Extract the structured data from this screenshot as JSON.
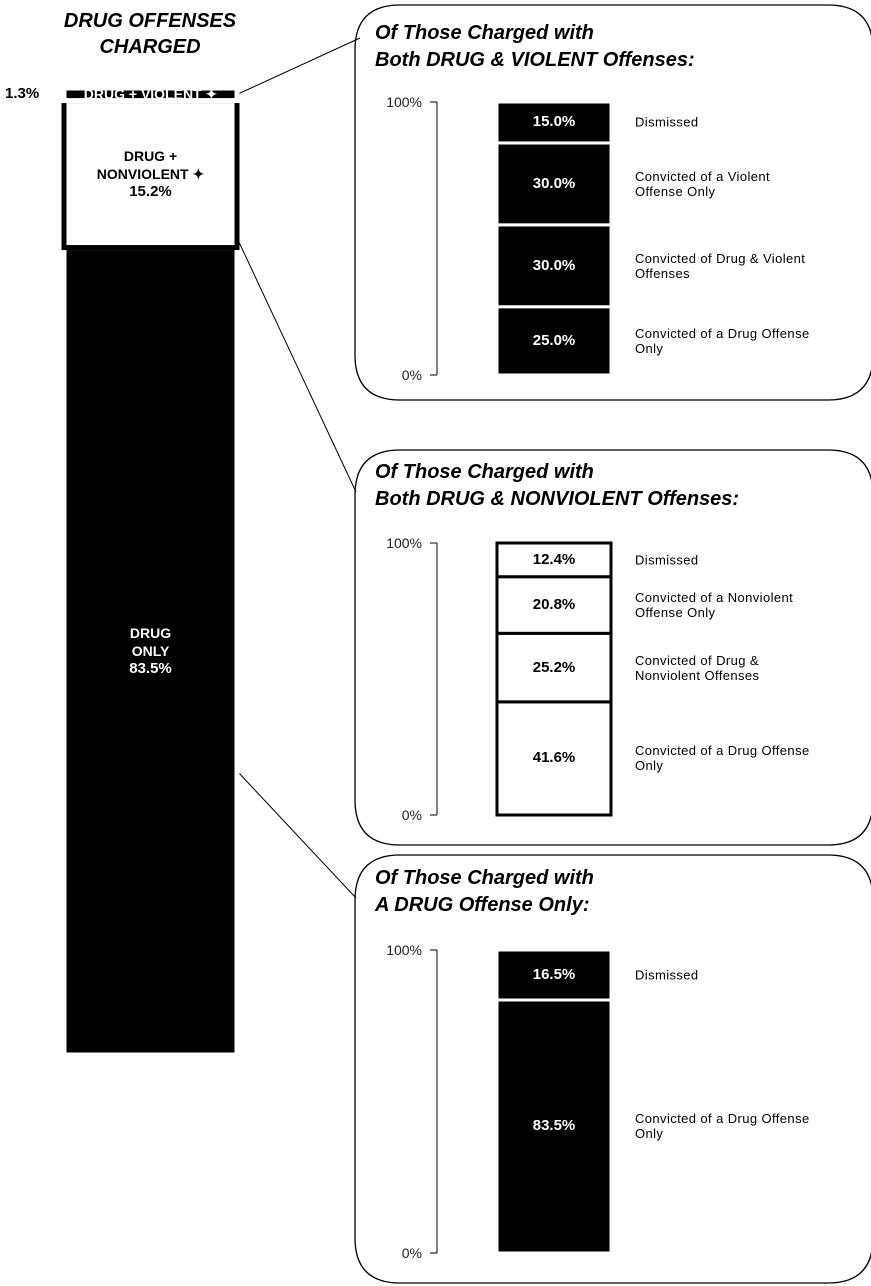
{
  "chart_data": [
    {
      "type": "stacked_bar",
      "title": "DRUG  OFFENSES\nCHARGED",
      "series": [
        {
          "name": "DRUG + VIOLENT ✦",
          "color": "#000000",
          "values": [
            1.3
          ],
          "value_labels": [
            "1.3%"
          ]
        },
        {
          "name": "DRUG +\nNONVIOLENT ✦",
          "color": "#ffffff",
          "values": [
            15.2
          ],
          "value_labels": [
            "15.2%"
          ]
        },
        {
          "name": "DRUG\nONLY",
          "color": "#000000",
          "values": [
            83.5
          ],
          "value_labels": [
            "83.5%"
          ]
        }
      ]
    },
    {
      "type": "stacked_bar",
      "title": "Of Those Charged with\nBoth DRUG & VIOLENT Offenses:",
      "ylim": [
        0,
        100
      ],
      "yticks": [
        {
          "value": 0,
          "label": "0%"
        },
        {
          "value": 100,
          "label": "100%"
        }
      ],
      "series": [
        {
          "name": "Dismissed",
          "color": "#000000",
          "values": [
            15.0
          ],
          "value_labels": [
            "15.0%"
          ]
        },
        {
          "name": "Convicted of a Violent\nOffense Only",
          "color": "#000000",
          "values": [
            30.0
          ],
          "value_labels": [
            "30.0%"
          ]
        },
        {
          "name": "Convicted of Drug & Violent\nOffenses",
          "color": "#000000",
          "values": [
            30.0
          ],
          "value_labels": [
            "30.0%"
          ]
        },
        {
          "name": "Convicted of a Drug Offense\nOnly",
          "color": "#000000",
          "values": [
            25.0
          ],
          "value_labels": [
            "25.0%"
          ]
        }
      ]
    },
    {
      "type": "stacked_bar",
      "title": "Of Those Charged with\nBoth DRUG & NONVIOLENT Offenses:",
      "ylim": [
        0,
        100
      ],
      "yticks": [
        {
          "value": 0,
          "label": "0%"
        },
        {
          "value": 100,
          "label": "100%"
        }
      ],
      "series": [
        {
          "name": "Dismissed",
          "color": "#ffffff",
          "values": [
            12.4
          ],
          "value_labels": [
            "12.4%"
          ]
        },
        {
          "name": "Convicted of a Nonviolent\nOffense Only",
          "color": "#ffffff",
          "values": [
            20.8
          ],
          "value_labels": [
            "20.8%"
          ]
        },
        {
          "name": "Convicted of Drug &\nNonviolent  Offenses",
          "color": "#ffffff",
          "values": [
            25.2
          ],
          "value_labels": [
            "25.2%"
          ]
        },
        {
          "name": "Convicted of a Drug Offense\nOnly",
          "color": "#ffffff",
          "values": [
            41.6
          ],
          "value_labels": [
            "41.6%"
          ]
        }
      ]
    },
    {
      "type": "stacked_bar",
      "title": "Of Those Charged with\nA DRUG Offense Only:",
      "ylim": [
        0,
        100
      ],
      "yticks": [
        {
          "value": 0,
          "label": "0%"
        },
        {
          "value": 100,
          "label": "100%"
        }
      ],
      "series": [
        {
          "name": "Dismissed",
          "color": "#000000",
          "values": [
            16.5
          ],
          "value_labels": [
            "16.5%"
          ]
        },
        {
          "name": "Convicted of a Drug Offense\nOnly",
          "color": "#000000",
          "values": [
            83.5
          ],
          "value_labels": [
            "83.5%"
          ]
        }
      ]
    }
  ]
}
